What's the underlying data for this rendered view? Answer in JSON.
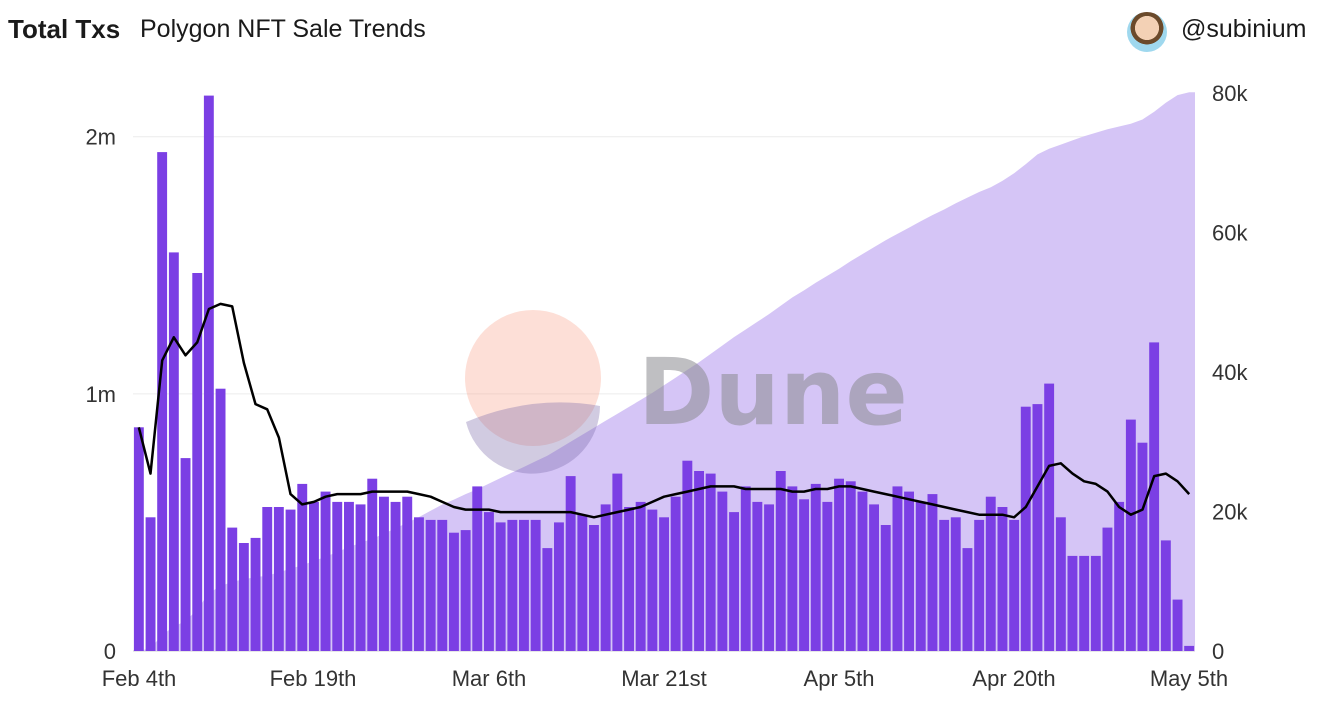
{
  "header": {
    "title": "Total Txs",
    "subtitle": "Polygon NFT Sale Trends",
    "username": "@subinium"
  },
  "watermark": "Dune",
  "colors": {
    "bar": "#7b3fe4",
    "area": "#d5c5f6",
    "line": "#000000",
    "grid": "#ececec"
  },
  "chart_data": {
    "type": "bar",
    "x_ticks": [
      "Feb 4th",
      "Feb 19th",
      "Mar 6th",
      "Mar 21st",
      "Apr 5th",
      "Apr 20th",
      "May 5th"
    ],
    "left_axis": {
      "ticks": [
        "0",
        "1m",
        "2m"
      ],
      "range": [
        0,
        2170000
      ]
    },
    "right_axis": {
      "ticks": [
        "0",
        "20k",
        "40k",
        "60k",
        "80k"
      ],
      "range": [
        0,
        80000
      ]
    },
    "grid": true,
    "series": [
      {
        "type": "bar",
        "axis": "left",
        "values": [
          870000,
          520000,
          1940000,
          1550000,
          750000,
          1470000,
          2160000,
          1020000,
          480000,
          420000,
          440000,
          560000,
          560000,
          550000,
          650000,
          580000,
          620000,
          580000,
          580000,
          570000,
          670000,
          600000,
          580000,
          600000,
          520000,
          510000,
          510000,
          460000,
          470000,
          640000,
          540000,
          500000,
          510000,
          510000,
          510000,
          400000,
          500000,
          680000,
          530000,
          490000,
          570000,
          690000,
          560000,
          580000,
          550000,
          520000,
          600000,
          740000,
          700000,
          690000,
          620000,
          540000,
          640000,
          580000,
          570000,
          700000,
          640000,
          590000,
          650000,
          580000,
          670000,
          660000,
          620000,
          570000,
          490000,
          640000,
          620000,
          580000,
          610000,
          510000,
          520000,
          400000,
          510000,
          600000,
          560000,
          510000,
          950000,
          960000,
          1040000,
          520000,
          370000,
          370000,
          370000,
          480000,
          580000,
          900000,
          810000,
          1200000,
          430000,
          200000,
          20000
        ]
      },
      {
        "type": "line",
        "axis": "left",
        "values": [
          870000,
          690000,
          1130000,
          1220000,
          1150000,
          1200000,
          1330000,
          1350000,
          1340000,
          1120000,
          960000,
          940000,
          830000,
          610000,
          570000,
          580000,
          600000,
          610000,
          610000,
          610000,
          620000,
          620000,
          620000,
          620000,
          610000,
          600000,
          580000,
          560000,
          550000,
          550000,
          550000,
          540000,
          540000,
          540000,
          540000,
          540000,
          540000,
          540000,
          530000,
          520000,
          530000,
          540000,
          550000,
          560000,
          580000,
          600000,
          610000,
          620000,
          630000,
          640000,
          640000,
          640000,
          630000,
          630000,
          630000,
          630000,
          620000,
          620000,
          630000,
          630000,
          640000,
          640000,
          630000,
          620000,
          610000,
          600000,
          590000,
          580000,
          570000,
          560000,
          550000,
          540000,
          530000,
          530000,
          530000,
          520000,
          560000,
          640000,
          720000,
          730000,
          690000,
          660000,
          650000,
          620000,
          560000,
          530000,
          550000,
          680000,
          690000,
          660000,
          610000
        ]
      },
      {
        "type": "area",
        "axis": "right",
        "values": [
          0,
          400,
          2300,
          3500,
          4300,
          5900,
          8300,
          9300,
          9900,
          10300,
          10600,
          10800,
          11300,
          11800,
          12300,
          12900,
          13500,
          14200,
          14900,
          15500,
          16100,
          16800,
          17600,
          18400,
          19200,
          20100,
          21000,
          21700,
          22500,
          23200,
          24000,
          24800,
          25600,
          26400,
          27200,
          28000,
          29000,
          30000,
          31000,
          32000,
          33000,
          34000,
          35000,
          36000,
          37000,
          38100,
          39200,
          40300,
          41400,
          42600,
          43800,
          45000,
          46100,
          47200,
          48300,
          49500,
          50700,
          51700,
          52800,
          53800,
          54800,
          55900,
          56900,
          57900,
          58900,
          59800,
          60700,
          61600,
          62500,
          63300,
          64200,
          65000,
          65800,
          66500,
          67400,
          68500,
          69800,
          71200,
          72000,
          72600,
          73200,
          73800,
          74300,
          74800,
          75200,
          75600,
          76200,
          77300,
          78600,
          79700,
          80100
        ]
      }
    ]
  }
}
